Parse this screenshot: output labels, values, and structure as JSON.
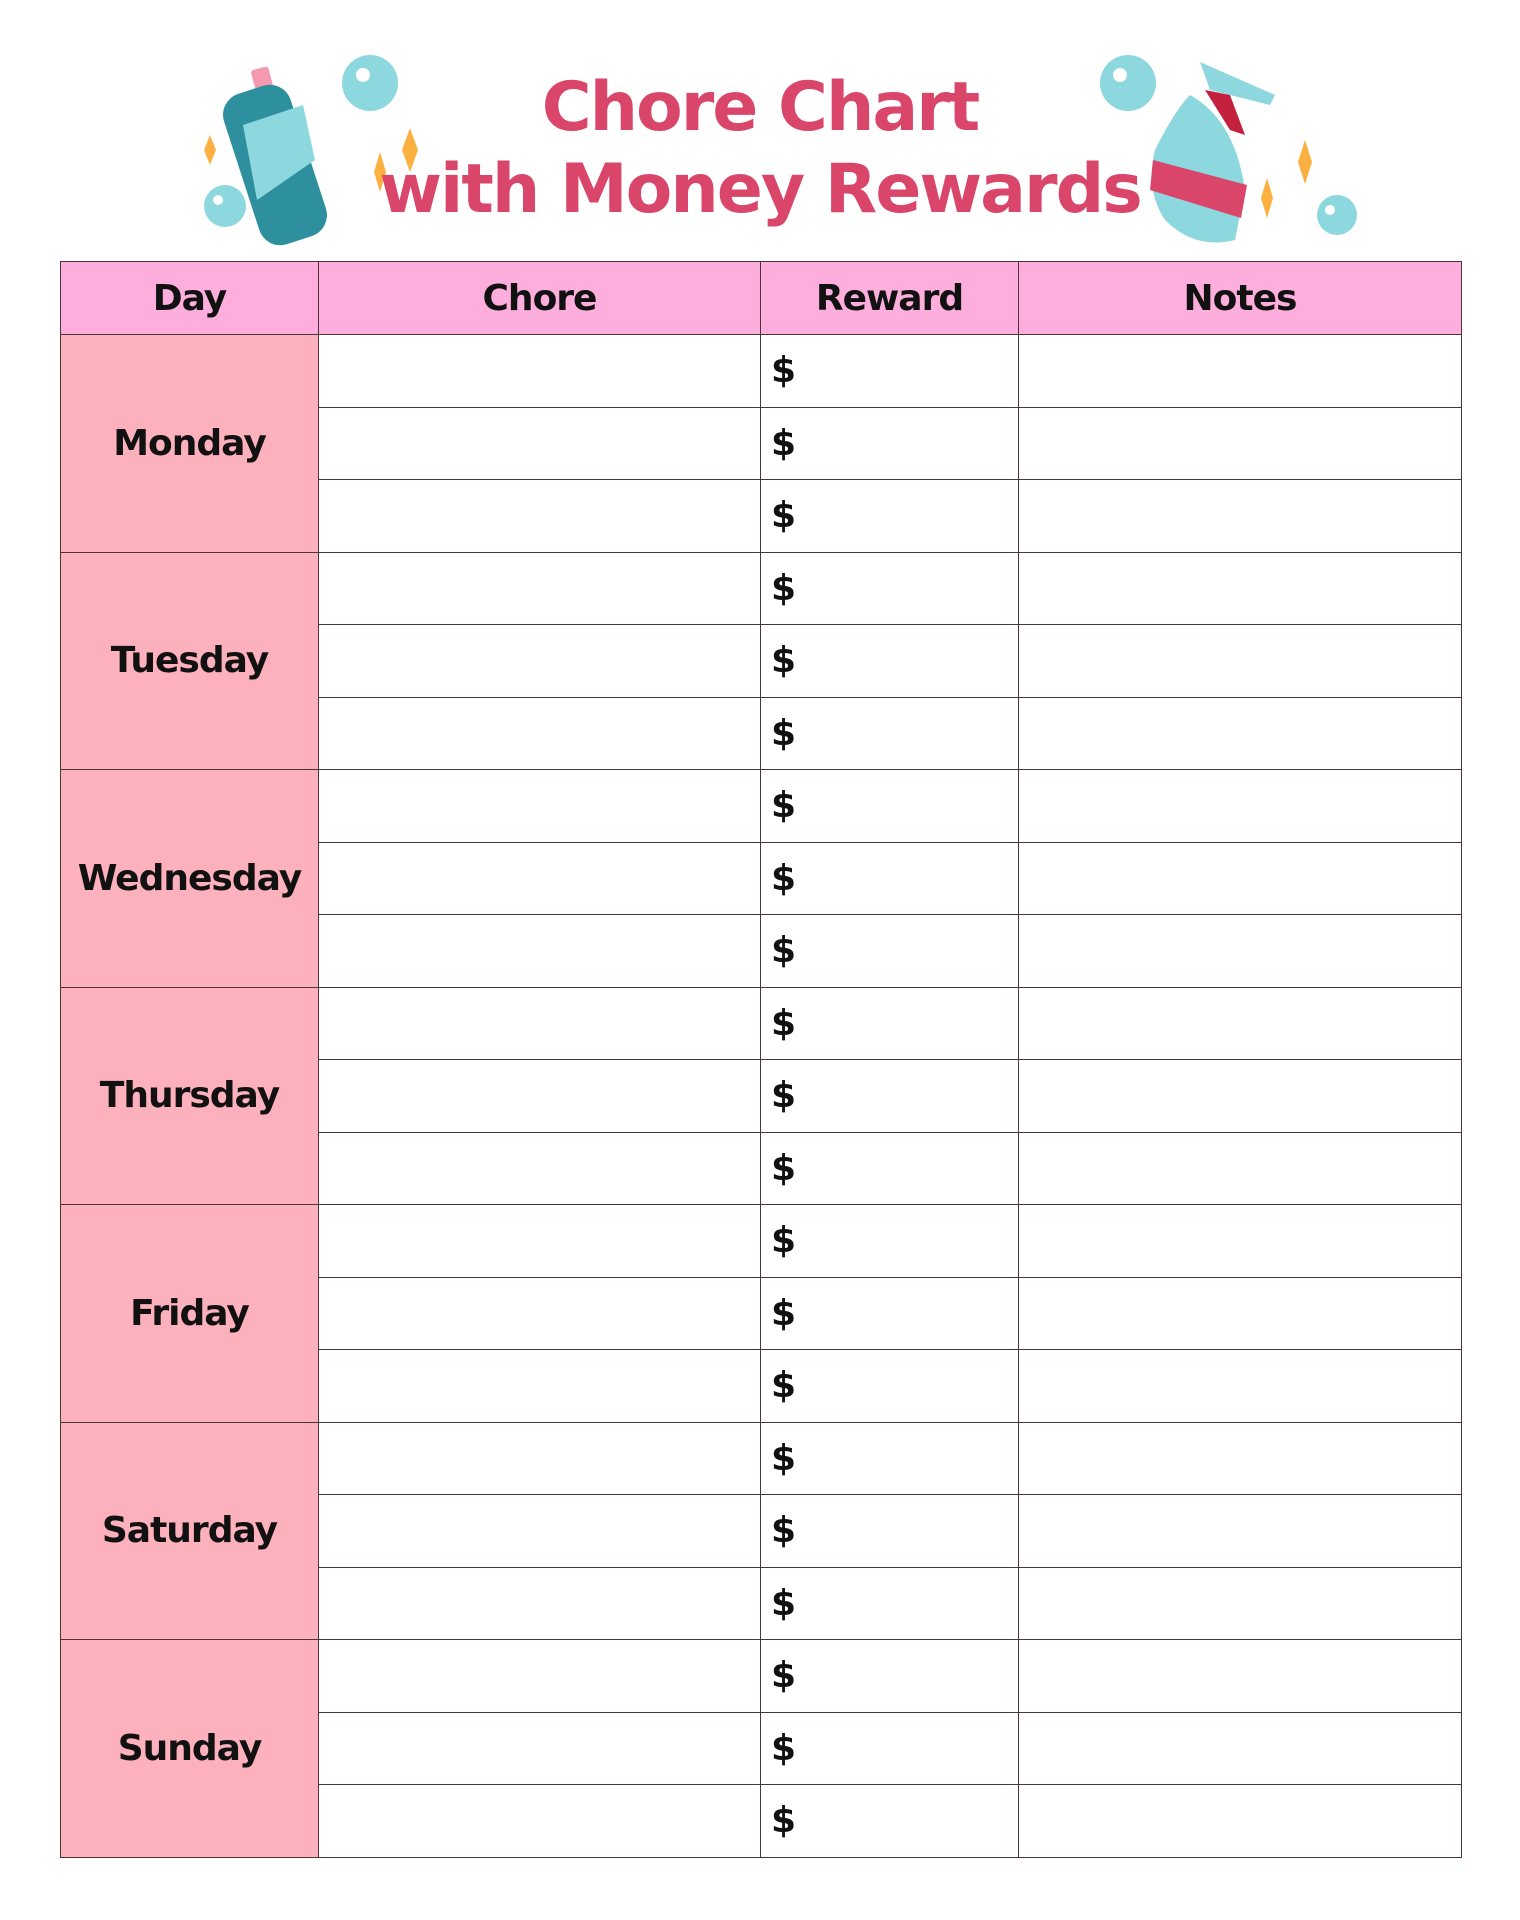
{
  "title": {
    "line1": "Chore Chart",
    "line2": "with Money Rewards",
    "color": "#d9466a"
  },
  "colors": {
    "header_bg": "#fdaedc",
    "day_bg": "#fdb1bc",
    "bubble": "#8dd7de",
    "sparkle": "#fbb040",
    "bottle": "#2e8f9e"
  },
  "decorations": {
    "left": "detergent-bottle-icon",
    "right": "spray-bottle-icon"
  },
  "table": {
    "headers": [
      "Day",
      "Chore",
      "Reward",
      "Notes"
    ],
    "currency_symbol": "$",
    "rows_per_day": 3,
    "days": [
      "Monday",
      "Tuesday",
      "Wednesday",
      "Thursday",
      "Friday",
      "Saturday",
      "Sunday"
    ]
  }
}
